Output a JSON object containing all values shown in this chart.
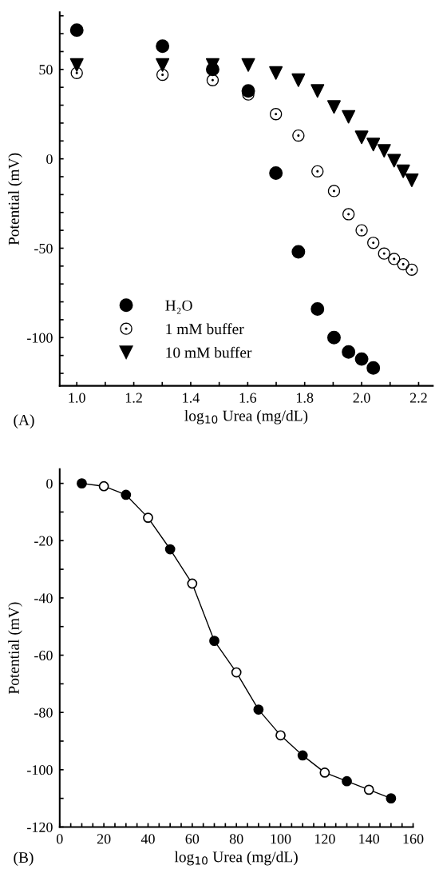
{
  "chart_data": [
    {
      "type": "scatter",
      "xlabel": "log$_{10}$ Urea (mg/dL)",
      "ylabel": "Potential (mV)",
      "annotations": [
        "(A)"
      ],
      "legend": "bottom left",
      "grid": false,
      "xlim": [
        0.94,
        2.25
      ],
      "ylim": [
        -127,
        82
      ],
      "xticks": [
        {
          "value": 1.0,
          "label": "1.0"
        },
        {
          "value": 1.1,
          "label": null
        },
        {
          "value": 1.2,
          "label": "1.2"
        },
        {
          "value": 1.3,
          "label": null
        },
        {
          "value": 1.4,
          "label": "1.4"
        },
        {
          "value": 1.5,
          "label": null
        },
        {
          "value": 1.6,
          "label": "1.6"
        },
        {
          "value": 1.7,
          "label": null
        },
        {
          "value": 1.8,
          "label": "1.8"
        },
        {
          "value": 1.9,
          "label": null
        },
        {
          "value": 2.0,
          "label": "2.0"
        },
        {
          "value": 2.1,
          "label": null
        },
        {
          "value": 2.2,
          "label": "2.2"
        }
      ],
      "yticks": [
        {
          "value": -120,
          "label": null
        },
        {
          "value": -110,
          "label": null
        },
        -100,
        {
          "value": -90,
          "label": null
        },
        {
          "value": -80,
          "label": null
        },
        {
          "value": -70,
          "label": null
        },
        {
          "value": -60,
          "label": null
        },
        -50,
        {
          "value": -40,
          "label": null
        },
        {
          "value": -30,
          "label": null
        },
        {
          "value": -20,
          "label": null
        },
        {
          "value": -10,
          "label": null
        },
        0,
        {
          "value": 10,
          "label": null
        },
        {
          "value": 20,
          "label": null
        },
        {
          "value": 30,
          "label": null
        },
        {
          "value": 40,
          "label": null
        },
        50,
        {
          "value": 60,
          "label": null
        },
        {
          "value": 70,
          "label": null
        },
        {
          "value": 80,
          "label": null
        }
      ],
      "series": [
        {
          "name": "H₂O",
          "color": "#000000",
          "marker": "circle",
          "x": [
            1.0,
            1.301,
            1.477,
            1.602,
            1.699,
            1.778,
            1.845,
            1.903,
            1.954,
            2.0,
            2.041
          ],
          "values": [
            72,
            63,
            50,
            38,
            -8,
            -52,
            -84,
            -100,
            -108,
            -112,
            -117
          ]
        },
        {
          "name": "1 mM buffer",
          "color": "#000000",
          "marker": "circle-dot",
          "x": [
            1.0,
            1.301,
            1.477,
            1.602,
            1.699,
            1.778,
            1.845,
            1.903,
            1.954,
            2.0,
            2.041,
            2.079,
            2.114,
            2.146,
            2.176
          ],
          "values": [
            48,
            47,
            44,
            36,
            25,
            13,
            -7,
            -18,
            -31,
            -40,
            -47,
            -53,
            -56,
            -59,
            -62
          ]
        },
        {
          "name": "10 mM buffer",
          "color": "#000000",
          "marker": "triangle",
          "x": [
            1.0,
            1.301,
            1.477,
            1.602,
            1.699,
            1.778,
            1.845,
            1.903,
            1.954,
            2.0,
            2.041,
            2.079,
            2.114,
            2.146,
            2.176
          ],
          "values": [
            52.5,
            52.5,
            52.5,
            52.5,
            48,
            44,
            38,
            29,
            23.5,
            12,
            8,
            4.5,
            -1,
            -7,
            -12
          ]
        }
      ]
    },
    {
      "type": "line",
      "xlabel": "log$_{10}$ Urea (mg/dL)",
      "ylabel": "Potential (mV)",
      "annotations": [
        "(B)"
      ],
      "grid": false,
      "line_style": "solid",
      "xlim": [
        0,
        160
      ],
      "ylim": [
        -120,
        5
      ],
      "xticks": [
        0,
        {
          "value": 5,
          "label": null
        },
        {
          "value": 10,
          "label": null
        },
        {
          "value": 15,
          "label": null
        },
        20,
        {
          "value": 25,
          "label": null
        },
        {
          "value": 30,
          "label": null
        },
        {
          "value": 35,
          "label": null
        },
        40,
        {
          "value": 45,
          "label": null
        },
        {
          "value": 50,
          "label": null
        },
        {
          "value": 55,
          "label": null
        },
        60,
        {
          "value": 65,
          "label": null
        },
        {
          "value": 70,
          "label": null
        },
        {
          "value": 75,
          "label": null
        },
        80,
        {
          "value": 85,
          "label": null
        },
        {
          "value": 90,
          "label": null
        },
        {
          "value": 95,
          "label": null
        },
        100,
        {
          "value": 105,
          "label": null
        },
        {
          "value": 110,
          "label": null
        },
        {
          "value": 115,
          "label": null
        },
        120,
        {
          "value": 125,
          "label": null
        },
        {
          "value": 130,
          "label": null
        },
        {
          "value": 135,
          "label": null
        },
        140,
        {
          "value": 145,
          "label": null
        },
        {
          "value": 150,
          "label": null
        },
        {
          "value": 155,
          "label": null
        },
        160
      ],
      "yticks": [
        -120,
        {
          "value": -110,
          "label": null
        },
        -100,
        {
          "value": -90,
          "label": null
        },
        -80,
        {
          "value": -70,
          "label": null
        },
        -60,
        {
          "value": -50,
          "label": null
        },
        -40,
        {
          "value": -30,
          "label": null
        },
        -20,
        {
          "value": -10,
          "label": null
        },
        0
      ],
      "series": [
        {
          "color": "#000000",
          "marker": "circle",
          "x": [
            10,
            20,
            30,
            40,
            50,
            60,
            70,
            80,
            90,
            100,
            110,
            120,
            130,
            140,
            150
          ],
          "values": [
            0,
            -1,
            -4,
            -12,
            -23,
            -35,
            -55,
            -66,
            -79,
            -88,
            -95,
            -101,
            -104,
            -107,
            -110
          ],
          "colors": [
            "#000000",
            "#ffffff",
            "#000000",
            "#ffffff",
            "#000000",
            "#ffffff",
            "#000000",
            "#ffffff",
            "#000000",
            "#ffffff",
            "#000000",
            "#ffffff",
            "#000000",
            "#ffffff",
            "#000000"
          ]
        }
      ]
    }
  ]
}
